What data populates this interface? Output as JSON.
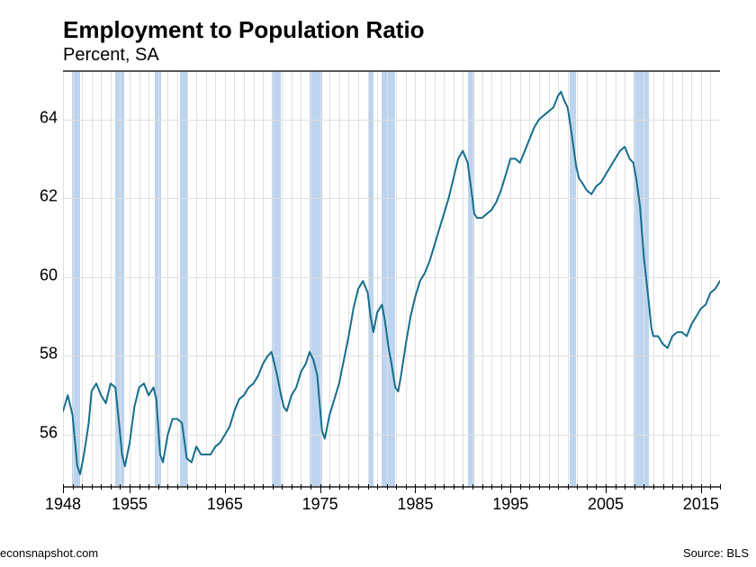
{
  "chart": {
    "type": "line",
    "title": "Employment to Population Ratio",
    "subtitle": "Percent, SA",
    "title_fontsize": 26,
    "subtitle_fontsize": 20,
    "background_color": "transparent",
    "grid_color": "#e0e0e0",
    "line_color": "#176e8c",
    "line_width": 2,
    "recession_color": "#bcd4ee",
    "xlim": [
      1948,
      2017
    ],
    "ylim": [
      54.7,
      65.2
    ],
    "y_ticks": [
      56,
      58,
      60,
      62,
      64
    ],
    "x_labels": [
      1948,
      1955,
      1965,
      1975,
      1985,
      1995,
      2005,
      2015
    ],
    "x_minor_step": 1,
    "recessions": [
      [
        1948.9,
        1949.8
      ],
      [
        1953.5,
        1954.4
      ],
      [
        1957.6,
        1958.3
      ],
      [
        1960.3,
        1961.1
      ],
      [
        1969.9,
        1970.9
      ],
      [
        1973.9,
        1975.2
      ],
      [
        1980.0,
        1980.6
      ],
      [
        1981.5,
        1982.9
      ],
      [
        1990.5,
        1991.2
      ],
      [
        2001.2,
        2001.9
      ],
      [
        2007.9,
        2009.5
      ]
    ],
    "series": [
      [
        1948.0,
        56.6
      ],
      [
        1948.5,
        57.0
      ],
      [
        1949.0,
        56.5
      ],
      [
        1949.5,
        55.2
      ],
      [
        1949.8,
        55.0
      ],
      [
        1950.2,
        55.5
      ],
      [
        1950.7,
        56.3
      ],
      [
        1951.0,
        57.1
      ],
      [
        1951.5,
        57.3
      ],
      [
        1952.0,
        57.0
      ],
      [
        1952.5,
        56.8
      ],
      [
        1953.0,
        57.3
      ],
      [
        1953.5,
        57.2
      ],
      [
        1953.8,
        56.5
      ],
      [
        1954.2,
        55.5
      ],
      [
        1954.5,
        55.2
      ],
      [
        1955.0,
        55.8
      ],
      [
        1955.5,
        56.7
      ],
      [
        1956.0,
        57.2
      ],
      [
        1956.5,
        57.3
      ],
      [
        1957.0,
        57.0
      ],
      [
        1957.5,
        57.2
      ],
      [
        1957.8,
        56.9
      ],
      [
        1958.2,
        55.5
      ],
      [
        1958.5,
        55.3
      ],
      [
        1959.0,
        56.0
      ],
      [
        1959.5,
        56.4
      ],
      [
        1960.0,
        56.4
      ],
      [
        1960.5,
        56.3
      ],
      [
        1961.0,
        55.4
      ],
      [
        1961.5,
        55.3
      ],
      [
        1962.0,
        55.7
      ],
      [
        1962.5,
        55.5
      ],
      [
        1963.0,
        55.5
      ],
      [
        1963.5,
        55.5
      ],
      [
        1964.0,
        55.7
      ],
      [
        1964.5,
        55.8
      ],
      [
        1965.0,
        56.0
      ],
      [
        1965.5,
        56.2
      ],
      [
        1966.0,
        56.6
      ],
      [
        1966.5,
        56.9
      ],
      [
        1967.0,
        57.0
      ],
      [
        1967.5,
        57.2
      ],
      [
        1968.0,
        57.3
      ],
      [
        1968.5,
        57.5
      ],
      [
        1969.0,
        57.8
      ],
      [
        1969.5,
        58.0
      ],
      [
        1969.9,
        58.1
      ],
      [
        1970.2,
        57.8
      ],
      [
        1970.5,
        57.5
      ],
      [
        1970.9,
        57.0
      ],
      [
        1971.2,
        56.7
      ],
      [
        1971.5,
        56.6
      ],
      [
        1972.0,
        57.0
      ],
      [
        1972.5,
        57.2
      ],
      [
        1973.0,
        57.6
      ],
      [
        1973.5,
        57.8
      ],
      [
        1973.9,
        58.1
      ],
      [
        1974.3,
        57.9
      ],
      [
        1974.7,
        57.5
      ],
      [
        1975.2,
        56.1
      ],
      [
        1975.5,
        55.9
      ],
      [
        1976.0,
        56.5
      ],
      [
        1976.5,
        56.9
      ],
      [
        1977.0,
        57.3
      ],
      [
        1977.5,
        57.9
      ],
      [
        1978.0,
        58.5
      ],
      [
        1978.5,
        59.2
      ],
      [
        1979.0,
        59.7
      ],
      [
        1979.5,
        59.9
      ],
      [
        1980.0,
        59.6
      ],
      [
        1980.3,
        59.0
      ],
      [
        1980.6,
        58.6
      ],
      [
        1981.0,
        59.1
      ],
      [
        1981.5,
        59.3
      ],
      [
        1981.8,
        58.9
      ],
      [
        1982.2,
        58.2
      ],
      [
        1982.5,
        57.8
      ],
      [
        1982.9,
        57.2
      ],
      [
        1983.2,
        57.1
      ],
      [
        1983.5,
        57.5
      ],
      [
        1984.0,
        58.3
      ],
      [
        1984.5,
        59.0
      ],
      [
        1985.0,
        59.5
      ],
      [
        1985.5,
        59.9
      ],
      [
        1986.0,
        60.1
      ],
      [
        1986.5,
        60.4
      ],
      [
        1987.0,
        60.8
      ],
      [
        1987.5,
        61.2
      ],
      [
        1988.0,
        61.6
      ],
      [
        1988.5,
        62.0
      ],
      [
        1989.0,
        62.5
      ],
      [
        1989.5,
        63.0
      ],
      [
        1990.0,
        63.2
      ],
      [
        1990.5,
        62.9
      ],
      [
        1991.0,
        62.0
      ],
      [
        1991.2,
        61.6
      ],
      [
        1991.5,
        61.5
      ],
      [
        1992.0,
        61.5
      ],
      [
        1992.5,
        61.6
      ],
      [
        1993.0,
        61.7
      ],
      [
        1993.5,
        61.9
      ],
      [
        1994.0,
        62.2
      ],
      [
        1994.5,
        62.6
      ],
      [
        1995.0,
        63.0
      ],
      [
        1995.5,
        63.0
      ],
      [
        1996.0,
        62.9
      ],
      [
        1996.5,
        63.2
      ],
      [
        1997.0,
        63.5
      ],
      [
        1997.5,
        63.8
      ],
      [
        1998.0,
        64.0
      ],
      [
        1998.5,
        64.1
      ],
      [
        1999.0,
        64.2
      ],
      [
        1999.5,
        64.3
      ],
      [
        2000.0,
        64.6
      ],
      [
        2000.3,
        64.7
      ],
      [
        2000.6,
        64.5
      ],
      [
        2001.0,
        64.3
      ],
      [
        2001.2,
        64.0
      ],
      [
        2001.5,
        63.5
      ],
      [
        2001.9,
        62.8
      ],
      [
        2002.2,
        62.5
      ],
      [
        2002.5,
        62.4
      ],
      [
        2003.0,
        62.2
      ],
      [
        2003.5,
        62.1
      ],
      [
        2004.0,
        62.3
      ],
      [
        2004.5,
        62.4
      ],
      [
        2005.0,
        62.6
      ],
      [
        2005.5,
        62.8
      ],
      [
        2006.0,
        63.0
      ],
      [
        2006.5,
        63.2
      ],
      [
        2007.0,
        63.3
      ],
      [
        2007.5,
        63.0
      ],
      [
        2007.9,
        62.9
      ],
      [
        2008.2,
        62.5
      ],
      [
        2008.6,
        61.8
      ],
      [
        2009.0,
        60.5
      ],
      [
        2009.5,
        59.4
      ],
      [
        2009.8,
        58.7
      ],
      [
        2010.0,
        58.5
      ],
      [
        2010.5,
        58.5
      ],
      [
        2011.0,
        58.3
      ],
      [
        2011.5,
        58.2
      ],
      [
        2012.0,
        58.5
      ],
      [
        2012.5,
        58.6
      ],
      [
        2013.0,
        58.6
      ],
      [
        2013.5,
        58.5
      ],
      [
        2014.0,
        58.8
      ],
      [
        2014.5,
        59.0
      ],
      [
        2015.0,
        59.2
      ],
      [
        2015.5,
        59.3
      ],
      [
        2016.0,
        59.6
      ],
      [
        2016.5,
        59.7
      ],
      [
        2017.0,
        59.9
      ]
    ],
    "footer_left": "econsnapshot.com",
    "footer_right": "Source: BLS"
  }
}
